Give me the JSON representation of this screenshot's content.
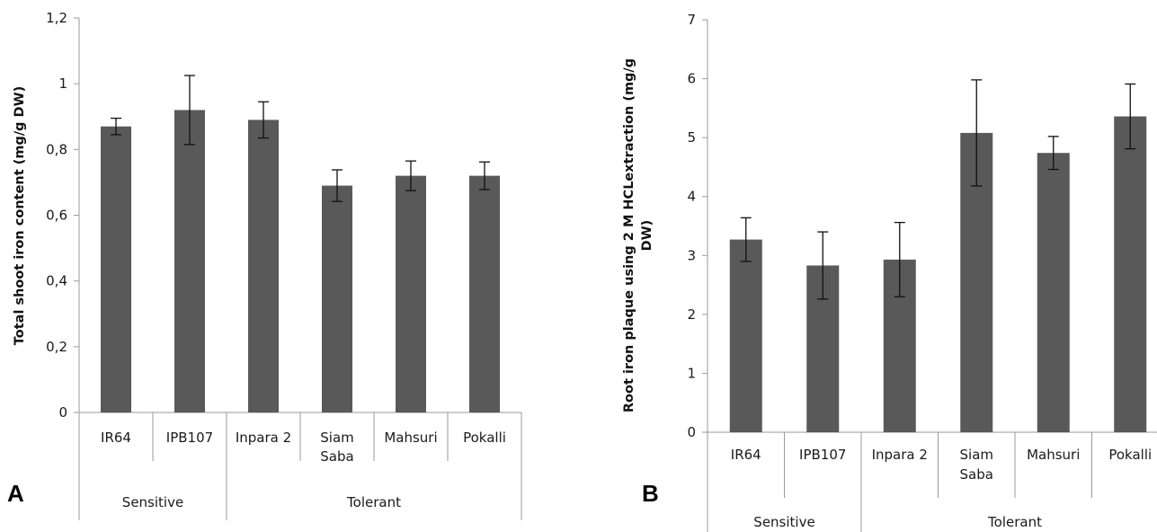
{
  "chart_data": [
    {
      "type": "bar",
      "panel_label": "A",
      "ylabel": "Total shoot iron content (mg/g DW)",
      "ylim": [
        0,
        1.2
      ],
      "yticks": [
        "0",
        "0,2",
        "0,4",
        "0,6",
        "0,8",
        "1",
        "1,2"
      ],
      "categories": [
        [
          "IR64"
        ],
        [
          "IPB107"
        ],
        [
          "Inpara 2"
        ],
        [
          "Siam",
          "Saba"
        ],
        [
          "Mahsuri"
        ],
        [
          "Pokalli"
        ]
      ],
      "values": [
        0.87,
        0.92,
        0.89,
        0.69,
        0.72,
        0.72
      ],
      "errors": [
        0.025,
        0.105,
        0.055,
        0.048,
        0.045,
        0.042
      ],
      "groups": [
        {
          "label": "Sensitive",
          "span": [
            0,
            1
          ]
        },
        {
          "label": "Tolerant",
          "span": [
            2,
            5
          ]
        }
      ]
    },
    {
      "type": "bar",
      "panel_label": "B",
      "ylabel": [
        "Root iron plaque using 2 M HCLextraction  (mg/g",
        "DW)"
      ],
      "ylim": [
        0,
        7
      ],
      "yticks": [
        "0",
        "1",
        "2",
        "3",
        "4",
        "5",
        "6",
        "7"
      ],
      "categories": [
        [
          "IR64"
        ],
        [
          "IPB107"
        ],
        [
          "Inpara 2"
        ],
        [
          "Siam",
          "Saba"
        ],
        [
          "Mahsuri"
        ],
        [
          "Pokalli"
        ]
      ],
      "values": [
        3.27,
        2.83,
        2.93,
        5.08,
        4.74,
        5.36
      ],
      "errors": [
        0.37,
        0.57,
        0.63,
        0.9,
        0.28,
        0.55
      ],
      "groups": [
        {
          "label": "Sensitive",
          "span": [
            0,
            1
          ]
        },
        {
          "label": "Tolerant",
          "span": [
            2,
            5
          ]
        }
      ]
    }
  ]
}
